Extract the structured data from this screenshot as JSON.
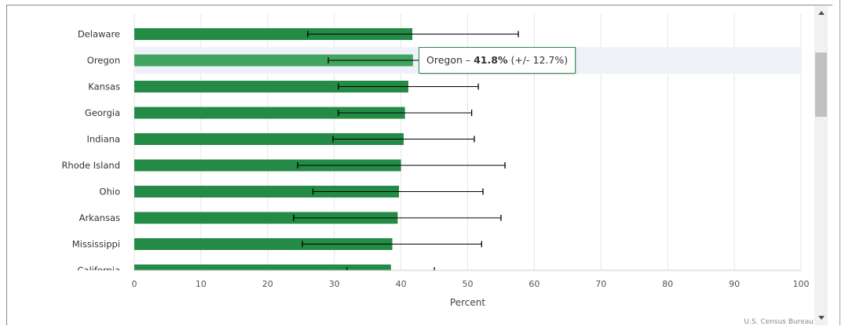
{
  "chart_data": {
    "type": "bar",
    "orientation": "horizontal",
    "categories": [
      "Delaware",
      "Oregon",
      "Kansas",
      "Georgia",
      "Indiana",
      "Rhode Island",
      "Ohio",
      "Arkansas",
      "Mississippi",
      "California"
    ],
    "values": [
      41.7,
      41.8,
      41.1,
      40.6,
      40.4,
      40.0,
      39.7,
      39.5,
      38.7,
      38.5
    ],
    "error_low": [
      26.0,
      29.1,
      30.6,
      30.6,
      29.8,
      24.5,
      26.8,
      23.9,
      25.2,
      31.9
    ],
    "error_high": [
      57.6,
      54.5,
      51.6,
      50.6,
      51.0,
      55.6,
      52.3,
      55.0,
      52.1,
      45.0
    ],
    "xlabel": "Percent",
    "xlim": [
      0,
      100
    ],
    "xticks": [
      "0",
      "10",
      "20",
      "30",
      "40",
      "50",
      "60",
      "70",
      "80",
      "90",
      "100"
    ],
    "highlighted_category": "Oregon",
    "grid": true,
    "colors": {
      "bar": "#238b45",
      "bar_highlight": "#41a55f",
      "highlight_band": "#eef2f8",
      "error_bar": "#000000",
      "grid": "#e6e6e6"
    }
  },
  "tooltip": {
    "prefix": "Oregon – ",
    "value": "41.8%",
    "margin": " (+/- 12.7%)"
  },
  "credit": "U.S. Census Bureau"
}
